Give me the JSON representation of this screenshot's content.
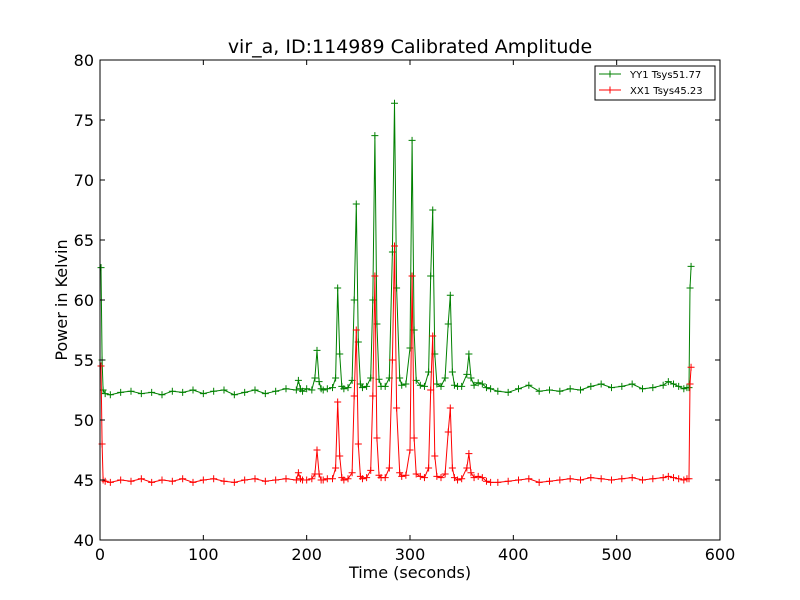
{
  "chart_data": {
    "type": "line",
    "title": "vir_a, ID:114989 Calibrated Amplitude",
    "xlabel": "Time (seconds)",
    "ylabel": "Power in Kelvin",
    "xlim": [
      0,
      600
    ],
    "ylim": [
      40,
      80
    ],
    "xticks": [
      0,
      100,
      200,
      300,
      400,
      500,
      600
    ],
    "yticks": [
      40,
      45,
      50,
      55,
      60,
      65,
      70,
      75,
      80
    ],
    "xtick_labels": [
      "0",
      "100",
      "200",
      "300",
      "400",
      "500",
      "600"
    ],
    "ytick_labels": [
      "40",
      "45",
      "50",
      "55",
      "60",
      "65",
      "70",
      "75",
      "80"
    ],
    "grid": false,
    "legend_position": "top-right",
    "marker": "+",
    "series": [
      {
        "name": "YY1 Tsys51.77",
        "color": "#008000",
        "x": [
          1,
          2,
          3,
          5,
          10,
          20,
          30,
          40,
          50,
          60,
          70,
          80,
          90,
          100,
          110,
          120,
          130,
          140,
          150,
          160,
          170,
          180,
          190,
          192,
          194,
          196,
          200,
          205,
          208,
          210,
          212,
          214,
          216,
          220,
          225,
          228,
          230,
          232,
          234,
          236,
          240,
          244,
          246,
          248,
          250,
          252,
          254,
          258,
          262,
          264,
          266,
          268,
          270,
          272,
          276,
          280,
          283,
          285,
          287,
          290,
          292,
          296,
          300,
          302,
          304,
          306,
          310,
          314,
          318,
          320,
          322,
          324,
          326,
          330,
          334,
          337,
          339,
          341,
          343,
          346,
          350,
          355,
          357,
          359,
          362,
          366,
          370,
          374,
          378,
          385,
          395,
          405,
          415,
          425,
          435,
          445,
          455,
          465,
          475,
          485,
          495,
          505,
          515,
          525,
          535,
          545,
          550,
          555,
          560,
          565,
          568,
          570,
          571,
          572
        ],
        "y": [
          62.7,
          55.0,
          52.5,
          52.2,
          52.1,
          52.3,
          52.4,
          52.2,
          52.3,
          52.1,
          52.4,
          52.3,
          52.5,
          52.2,
          52.4,
          52.5,
          52.1,
          52.3,
          52.5,
          52.2,
          52.4,
          52.6,
          52.5,
          53.3,
          52.6,
          52.4,
          52.6,
          52.5,
          53.5,
          55.8,
          53.2,
          52.6,
          52.5,
          52.6,
          52.7,
          53.5,
          61.0,
          55.5,
          52.8,
          52.6,
          52.7,
          53.3,
          60.0,
          68.0,
          56.5,
          53.0,
          52.7,
          52.8,
          53.5,
          60.0,
          73.7,
          58.0,
          53.4,
          52.8,
          52.8,
          53.5,
          64.0,
          76.4,
          61.0,
          53.5,
          52.9,
          53.0,
          56.0,
          73.3,
          57.5,
          53.3,
          52.9,
          52.8,
          54.0,
          62.0,
          67.5,
          55.5,
          53.0,
          52.8,
          53.5,
          58.0,
          60.4,
          54.0,
          52.9,
          52.8,
          52.8,
          53.8,
          55.5,
          53.5,
          52.9,
          53.1,
          53.0,
          52.7,
          52.6,
          52.4,
          52.3,
          52.6,
          52.9,
          52.4,
          52.5,
          52.4,
          52.6,
          52.5,
          52.8,
          53.0,
          52.7,
          52.8,
          53.0,
          52.6,
          52.7,
          52.9,
          53.2,
          53.0,
          52.8,
          52.6,
          52.7,
          52.7,
          61.0,
          62.8
        ]
      },
      {
        "name": "XX1 Tsys45.23",
        "color": "#ff0000",
        "x": [
          1,
          2,
          3,
          5,
          10,
          20,
          30,
          40,
          50,
          60,
          70,
          80,
          90,
          100,
          110,
          120,
          130,
          140,
          150,
          160,
          170,
          180,
          190,
          192,
          194,
          196,
          200,
          205,
          208,
          210,
          212,
          214,
          216,
          220,
          225,
          228,
          230,
          232,
          234,
          236,
          240,
          244,
          246,
          248,
          250,
          252,
          254,
          258,
          262,
          264,
          266,
          268,
          270,
          272,
          276,
          280,
          283,
          285,
          287,
          290,
          292,
          296,
          300,
          302,
          304,
          306,
          310,
          314,
          318,
          320,
          322,
          324,
          326,
          330,
          334,
          337,
          339,
          341,
          343,
          346,
          350,
          355,
          357,
          359,
          362,
          366,
          370,
          374,
          378,
          385,
          395,
          405,
          415,
          425,
          435,
          445,
          455,
          465,
          475,
          485,
          495,
          505,
          515,
          525,
          535,
          545,
          550,
          555,
          560,
          565,
          568,
          570,
          571,
          572
        ],
        "y": [
          54.5,
          48.0,
          45.0,
          44.9,
          44.8,
          45.0,
          44.9,
          45.1,
          44.8,
          45.0,
          44.9,
          45.1,
          44.8,
          45.0,
          45.1,
          44.9,
          44.8,
          45.0,
          45.1,
          44.9,
          45.0,
          45.1,
          45.0,
          45.6,
          45.1,
          45.0,
          45.0,
          45.1,
          45.5,
          47.5,
          45.5,
          45.0,
          45.0,
          45.1,
          45.1,
          46.0,
          51.5,
          47.0,
          45.2,
          45.0,
          45.1,
          45.6,
          52.0,
          57.5,
          48.0,
          45.3,
          45.1,
          45.2,
          45.8,
          52.0,
          62.0,
          48.5,
          45.4,
          45.2,
          45.2,
          46.0,
          55.0,
          64.5,
          51.0,
          45.6,
          45.3,
          45.4,
          47.5,
          62.0,
          48.5,
          45.5,
          45.3,
          45.2,
          46.0,
          52.5,
          57.0,
          47.0,
          45.3,
          45.2,
          45.5,
          49.0,
          51.0,
          46.0,
          45.2,
          45.0,
          45.1,
          46.0,
          47.2,
          45.6,
          45.2,
          45.3,
          45.2,
          44.9,
          44.8,
          44.8,
          44.9,
          45.0,
          45.1,
          44.8,
          44.9,
          45.0,
          45.1,
          45.0,
          45.2,
          45.1,
          45.0,
          45.1,
          45.2,
          45.0,
          45.1,
          45.2,
          45.3,
          45.2,
          45.1,
          45.0,
          45.1,
          45.1,
          53.0,
          54.4
        ]
      }
    ]
  }
}
